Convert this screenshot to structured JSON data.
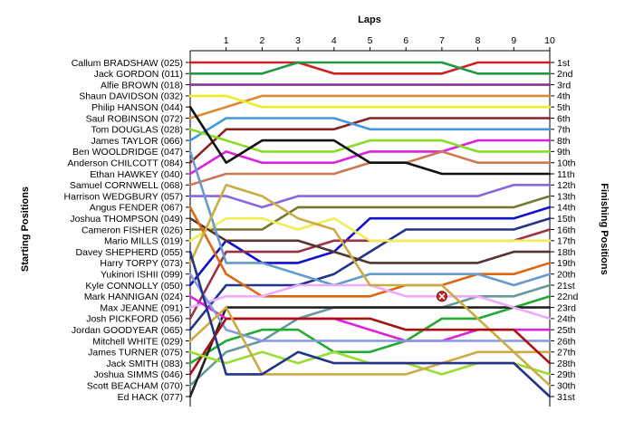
{
  "chart_data": {
    "type": "line",
    "title": "Laps",
    "ylabel_left": "Starting Positions",
    "ylabel_right": "Finishing Positions",
    "x": [
      1,
      2,
      3,
      4,
      5,
      6,
      7,
      8,
      9,
      10
    ],
    "ylim": [
      1,
      31
    ],
    "y_inverted": true,
    "grid": false,
    "starting_grid": [
      "Callum BRADSHAW (025)",
      "Jack GORDON (011)",
      "Alfie BROWN (018)",
      "Shaun DAVIDSON (032)",
      "Philip HANSON (044)",
      "Saul ROBINSON (072)",
      "Tom DOUGLAS (028)",
      "James TAYLOR (066)",
      "Ben WOOLDRIDGE (047)",
      "Anderson CHILCOTT (084)",
      "Ethan HAWKEY (040)",
      "Samuel CORNWELL (068)",
      "Harrison WEDGBURY (057)",
      "Angus FENDER (067)",
      "Joshua THOMPSON (049)",
      "Cameron FISHER (026)",
      "Mario MILLS (019)",
      "Davey SHEPHERD (055)",
      "Harry TORPY (073)",
      "Yukinori ISHII (099)",
      "Kyle CONNOLLY (050)",
      "Mark HANNIGAN (024)",
      "Max JEANNE (091)",
      "Josh PICKFORD (056)",
      "Jordan GOODYEAR (065)",
      "Mitchell WHITE (029)",
      "James TURNER (075)",
      "Jack SMITH (083)",
      "Joshua SIMMS (046)",
      "Scott BEACHAM (070)",
      "Ed HACK (077)"
    ],
    "finishing_labels": [
      "1st",
      "2nd",
      "3rd",
      "4th",
      "5th",
      "6th",
      "7th",
      "8th",
      "9th",
      "10th",
      "11th",
      "12th",
      "13th",
      "14th",
      "15th",
      "16th",
      "17th",
      "18th",
      "19th",
      "20th",
      "21st",
      "22nd",
      "23rd",
      "24th",
      "25th",
      "26th",
      "27th",
      "28th",
      "29th",
      "30th",
      "31st"
    ],
    "series": [
      {
        "color": "#cc2222",
        "start": 1,
        "positions": [
          1,
          1,
          1,
          2,
          2,
          2,
          2,
          1,
          1,
          1
        ]
      },
      {
        "color": "#229944",
        "start": 2,
        "positions": [
          2,
          2,
          1,
          1,
          1,
          1,
          1,
          2,
          2,
          2
        ]
      },
      {
        "color": "#883399",
        "start": 3,
        "positions": [
          3,
          3,
          3,
          3,
          3,
          3,
          3,
          3,
          3,
          3
        ]
      },
      {
        "color": "#dd8833",
        "start": 6,
        "positions": [
          5,
          4,
          4,
          4,
          4,
          4,
          4,
          4,
          4,
          4
        ]
      },
      {
        "color": "#eeee22",
        "start": 4,
        "positions": [
          4,
          5,
          5,
          5,
          5,
          5,
          5,
          5,
          5,
          5
        ]
      },
      {
        "color": "#882222",
        "start": 10,
        "positions": [
          7,
          7,
          7,
          7,
          6,
          6,
          6,
          6,
          6,
          6
        ]
      },
      {
        "color": "#4499dd",
        "start": 8,
        "positions": [
          6,
          6,
          6,
          6,
          7,
          7,
          7,
          7,
          7,
          7
        ]
      },
      {
        "color": "#dd22dd",
        "start": 11,
        "positions": [
          9,
          10,
          10,
          10,
          9,
          9,
          9,
          8,
          8,
          8
        ]
      },
      {
        "color": "#88dd22",
        "start": 7,
        "positions": [
          8,
          9,
          9,
          9,
          8,
          8,
          8,
          9,
          9,
          9
        ]
      },
      {
        "color": "#cc7755",
        "start": 12,
        "positions": [
          11,
          11,
          11,
          11,
          10,
          10,
          9,
          10,
          10,
          10
        ]
      },
      {
        "color": "#111111",
        "start": 5,
        "positions": [
          10,
          8,
          8,
          8,
          10,
          10,
          11,
          11,
          11,
          11
        ]
      },
      {
        "color": "#8866dd",
        "start": 13,
        "positions": [
          13,
          14,
          13,
          13,
          13,
          13,
          13,
          13,
          12,
          12
        ]
      },
      {
        "color": "#777733",
        "start": 16,
        "positions": [
          16,
          16,
          14,
          14,
          14,
          14,
          14,
          14,
          14,
          13
        ]
      },
      {
        "color": "#1111cc",
        "start": 21,
        "positions": [
          17,
          19,
          19,
          18,
          15,
          15,
          15,
          15,
          15,
          14
        ]
      },
      {
        "color": "#223388",
        "start": 25,
        "positions": [
          21,
          21,
          21,
          20,
          18,
          16,
          16,
          16,
          16,
          15
        ]
      },
      {
        "color": "#993344",
        "start": 24,
        "positions": [
          18,
          18,
          18,
          17,
          17,
          17,
          17,
          17,
          17,
          16
        ]
      },
      {
        "color": "#eeee55",
        "start": 17,
        "positions": [
          15,
          15,
          16,
          15,
          17,
          17,
          17,
          17,
          17,
          17
        ]
      },
      {
        "color": "#553333",
        "start": 15,
        "positions": [
          17,
          17,
          17,
          18,
          19,
          19,
          19,
          19,
          18,
          18
        ]
      },
      {
        "color": "#dd6611",
        "start": 14,
        "positions": [
          20,
          22,
          22,
          22,
          22,
          21,
          21,
          20,
          20,
          19
        ]
      },
      {
        "color": "#6699cc",
        "start": 9,
        "positions": [
          19,
          19,
          20,
          21,
          20,
          20,
          20,
          20,
          21,
          20
        ]
      },
      {
        "color": "#669999",
        "start": 30,
        "positions": [
          27,
          26,
          24,
          23,
          23,
          23,
          23,
          22,
          22,
          21
        ]
      },
      {
        "color": "#22aa33",
        "start": 28,
        "positions": [
          26,
          25,
          25,
          27,
          27,
          26,
          24,
          24,
          23,
          22
        ]
      },
      {
        "color": "#222222",
        "start": 31,
        "positions": [
          23,
          23,
          23,
          23,
          23,
          23,
          23,
          23,
          23,
          23
        ]
      },
      {
        "color": "#eeaaff",
        "start": 23,
        "positions": [
          22,
          22,
          21,
          21,
          21,
          22,
          22,
          22,
          23,
          24
        ]
      },
      {
        "color": "#dd22dd",
        "start": 22,
        "positions": [
          24,
          24,
          24,
          24,
          25,
          26,
          26,
          25,
          25,
          25
        ]
      },
      {
        "color": "#8899dd",
        "start": 20,
        "positions": [
          25,
          26,
          26,
          26,
          26,
          26,
          26,
          26,
          26,
          26
        ]
      },
      {
        "color": "#ccaa44",
        "start": 19,
        "positions": [
          12,
          13,
          15,
          16,
          21,
          21,
          21,
          24,
          27,
          27
        ]
      },
      {
        "color": "#aa1111",
        "start": 29,
        "positions": [
          24,
          24,
          24,
          24,
          24,
          25,
          25,
          25,
          25,
          28
        ]
      },
      {
        "color": "#99dd33",
        "start": 27,
        "positions": [
          28,
          27,
          28,
          27,
          28,
          28,
          29,
          28,
          28,
          29
        ]
      },
      {
        "color": "#ccaa44",
        "start": 26,
        "positions": [
          23,
          29,
          29,
          29,
          29,
          29,
          28,
          27,
          27,
          30
        ]
      },
      {
        "color": "#223388",
        "start": 18,
        "positions": [
          29,
          29,
          27,
          28,
          28,
          28,
          28,
          28,
          28,
          31
        ]
      }
    ],
    "markers": [
      {
        "type": "retired",
        "color": "#cc2222",
        "lap": 7,
        "position": 22
      }
    ]
  }
}
